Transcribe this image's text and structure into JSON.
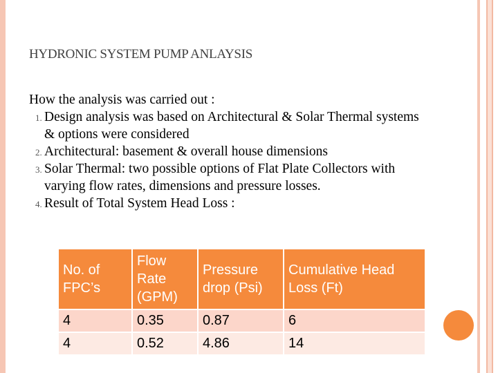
{
  "title": "HYDRONIC SYSTEM PUMP ANLAYSIS",
  "intro": "How the analysis was carried out :",
  "items": [
    "Design analysis was based on Architectural & Solar Thermal systems & options were considered",
    "Architectural: basement & overall house dimensions",
    "Solar Thermal: two possible options of Flat Plate Collectors with varying flow rates, dimensions and pressure losses.",
    "Result  of  Total System Head Loss :"
  ],
  "table": {
    "headers": [
      "No. of FPC’s",
      "Flow Rate (GPM)",
      "Pressure drop (Psi)",
      "Cumulative Head Loss (Ft)"
    ],
    "rows": [
      [
        "4",
        "0.35",
        "0.87",
        "6"
      ],
      [
        "4",
        "0.52",
        "4.86",
        "14"
      ]
    ]
  },
  "colors": {
    "accent": "#f58a3c",
    "row1": "#fcd6ca",
    "row2": "#fdeae3"
  }
}
